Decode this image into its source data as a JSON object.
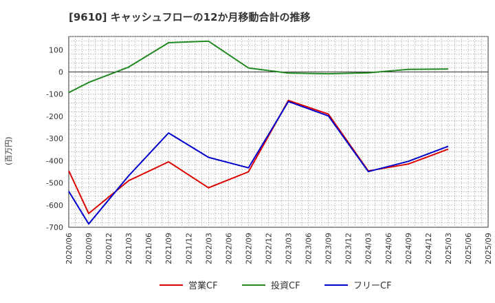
{
  "chart_data": {
    "type": "line",
    "title": "[9610]  キャッシュフローの12か月移動合計の推移",
    "ylabel": "(百万円)",
    "xlabel": "",
    "ylim": [
      -700,
      160
    ],
    "yticks": [
      100,
      0,
      -100,
      -200,
      -300,
      -400,
      -500,
      -600,
      -700
    ],
    "categories": [
      "2020/06",
      "2020/09",
      "2020/12",
      "2021/03",
      "2021/06",
      "2021/09",
      "2021/12",
      "2022/03",
      "2022/06",
      "2022/09",
      "2022/12",
      "2023/03",
      "2023/06",
      "2023/09",
      "2023/12",
      "2024/03",
      "2024/06",
      "2024/09",
      "2024/12",
      "2025/03",
      "2025/06",
      "2025/09"
    ],
    "series": [
      {
        "name": "営業CF",
        "color": "#dd0000",
        "values": [
          -445,
          -638,
          null,
          -490,
          null,
          -405,
          null,
          -522,
          null,
          -450,
          null,
          -128,
          null,
          -190,
          null,
          -446,
          null,
          -415,
          null,
          -348,
          null,
          null
        ]
      },
      {
        "name": "投資CF",
        "color": "#228822",
        "values": [
          -93,
          -47,
          null,
          22,
          null,
          132,
          null,
          139,
          null,
          18,
          null,
          -5,
          null,
          -8,
          null,
          -4,
          null,
          12,
          null,
          13,
          null,
          null
        ]
      },
      {
        "name": "フリーCF",
        "color": "#0000cc",
        "values": [
          -538,
          -685,
          null,
          -468,
          null,
          -275,
          null,
          -385,
          null,
          -432,
          null,
          -133,
          null,
          -198,
          null,
          -449,
          null,
          -403,
          null,
          -335,
          null,
          null
        ]
      }
    ],
    "grid": true,
    "legend_position": "bottom"
  }
}
